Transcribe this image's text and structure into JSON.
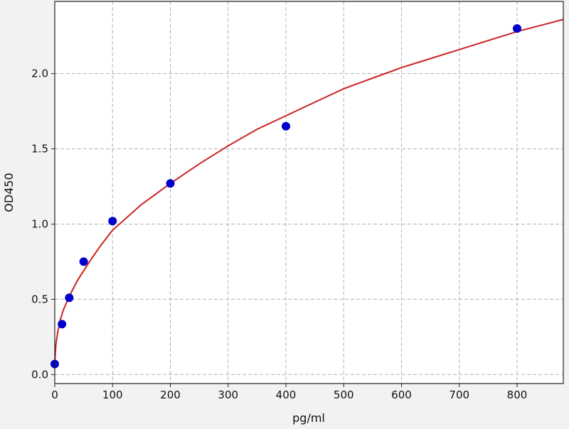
{
  "chart_data": {
    "type": "scatter",
    "title": "",
    "xlabel": "pg/ml",
    "ylabel": "OD450",
    "xlim": [
      0,
      880
    ],
    "ylim": [
      -0.06,
      2.48
    ],
    "grid": true,
    "x_ticks": [
      0,
      100,
      200,
      300,
      400,
      500,
      600,
      700,
      800
    ],
    "x_tick_labels": [
      "0",
      "100",
      "200",
      "300",
      "400",
      "500",
      "600",
      "700",
      "800"
    ],
    "y_ticks": [
      0.0,
      0.5,
      1.0,
      1.5,
      2.0
    ],
    "y_tick_labels": [
      "0.0",
      "0.5",
      "1.0",
      "1.5",
      "2.0"
    ],
    "series": [
      {
        "kind": "points",
        "color": "#0000cc",
        "x": [
          0,
          12.5,
          25,
          50,
          100,
          200,
          400,
          800
        ],
        "y": [
          0.07,
          0.335,
          0.51,
          0.75,
          1.02,
          1.27,
          1.65,
          2.3
        ]
      },
      {
        "kind": "fit-line",
        "color": "#cc2222",
        "x": [
          0,
          2,
          5,
          10,
          15,
          25,
          40,
          60,
          80,
          100,
          150,
          200,
          250,
          300,
          350,
          400,
          450,
          500,
          550,
          600,
          650,
          700,
          750,
          800,
          850,
          880
        ],
        "y": [
          0.08,
          0.2,
          0.28,
          0.37,
          0.43,
          0.52,
          0.63,
          0.75,
          0.86,
          0.96,
          1.13,
          1.27,
          1.4,
          1.52,
          1.63,
          1.72,
          1.81,
          1.9,
          1.97,
          2.04,
          2.1,
          2.16,
          2.22,
          2.28,
          2.33,
          2.36
        ]
      }
    ]
  }
}
